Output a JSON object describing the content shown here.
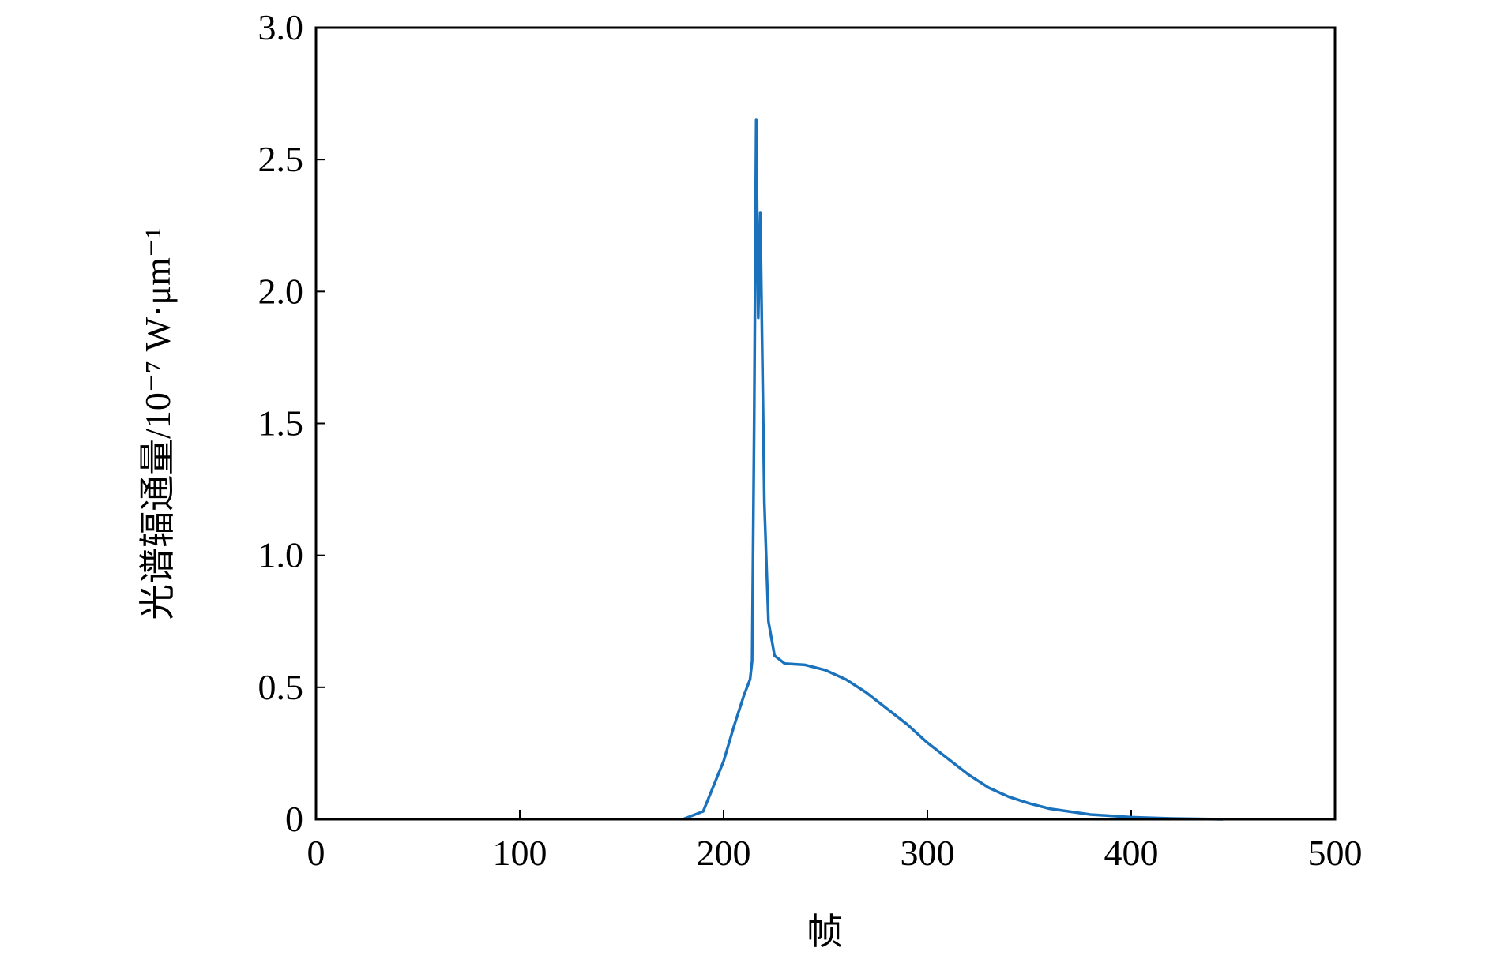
{
  "chart_data": {
    "type": "line",
    "xlabel": "帧",
    "ylabel": "光谱辐通量/10⁻⁷ W·μm⁻¹",
    "x": [
      180,
      190,
      200,
      205,
      210,
      213,
      214,
      215,
      216,
      217,
      218,
      220,
      222,
      225,
      230,
      240,
      250,
      260,
      270,
      280,
      290,
      300,
      310,
      320,
      330,
      340,
      350,
      360,
      380,
      400,
      420,
      445
    ],
    "series": [
      {
        "color": "#1a72bd",
        "values": [
          0,
          0.03,
          0.22,
          0.35,
          0.47,
          0.53,
          0.6,
          1.5,
          2.65,
          1.9,
          2.3,
          1.2,
          0.75,
          0.62,
          0.59,
          0.585,
          0.565,
          0.53,
          0.48,
          0.42,
          0.36,
          0.29,
          0.23,
          0.17,
          0.12,
          0.085,
          0.06,
          0.04,
          0.018,
          0.008,
          0.003,
          0
        ]
      }
    ],
    "xlim": [
      0,
      500
    ],
    "xticks": [
      0,
      100,
      200,
      300,
      400,
      500
    ],
    "ylim": [
      0,
      3
    ],
    "yticks": [
      0,
      0.5,
      {
        "value": 1,
        "label": "1.0"
      },
      1.5,
      {
        "value": 2,
        "label": "2.0"
      },
      2.5,
      {
        "value": 3,
        "label": "3.0"
      }
    ]
  }
}
